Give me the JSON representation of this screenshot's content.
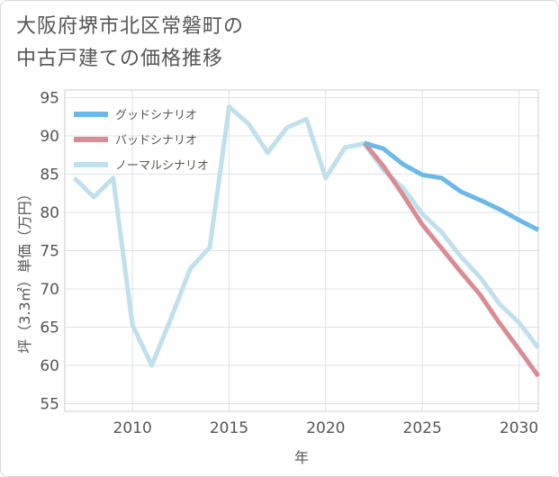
{
  "chart_data": {
    "type": "line",
    "title": [
      "大阪府堺市北区常磐町の",
      "中古戸建ての価格推移"
    ],
    "xlabel": "年",
    "ylabel": "坪（3.3㎡）単価（万円）",
    "xlim": [
      2006.5,
      2031
    ],
    "ylim": [
      54,
      96
    ],
    "xticks": [
      2010,
      2015,
      2020,
      2025,
      2030
    ],
    "yticks": [
      55,
      60,
      65,
      70,
      75,
      80,
      85,
      90,
      95
    ],
    "legend_position": "top-left",
    "series": [
      {
        "name": "グッドシナリオ",
        "color": "#6bb9ea",
        "x": [
          2022,
          2023,
          2024,
          2025,
          2026,
          2027,
          2028,
          2029,
          2030,
          2031
        ],
        "values": [
          89.1,
          88.3,
          86.3,
          84.9,
          84.5,
          82.7,
          81.6,
          80.4,
          79.0,
          77.7
        ]
      },
      {
        "name": "バッドシナリオ",
        "color": "#db8b93",
        "x": [
          2022,
          2023,
          2024,
          2025,
          2026,
          2027,
          2028,
          2029,
          2030,
          2031
        ],
        "values": [
          89.1,
          86.0,
          82.3,
          78.4,
          75.3,
          72.2,
          69.2,
          65.5,
          62.1,
          58.6
        ]
      },
      {
        "name": "ノーマルシナリオ",
        "color": "#bfe0ec",
        "x": [
          2007,
          2008,
          2009,
          2010,
          2011,
          2012,
          2013,
          2014,
          2015,
          2016,
          2017,
          2018,
          2019,
          2020,
          2021,
          2022,
          2023,
          2024,
          2025,
          2026,
          2027,
          2028,
          2029,
          2030,
          2031
        ],
        "values": [
          84.5,
          82.0,
          84.5,
          65.3,
          60.0,
          66.2,
          72.7,
          75.4,
          93.8,
          91.6,
          87.8,
          91.1,
          92.2,
          84.5,
          88.5,
          89.0,
          85.5,
          83.2,
          79.8,
          77.4,
          74.2,
          71.5,
          68.0,
          65.6,
          62.3
        ]
      }
    ]
  }
}
